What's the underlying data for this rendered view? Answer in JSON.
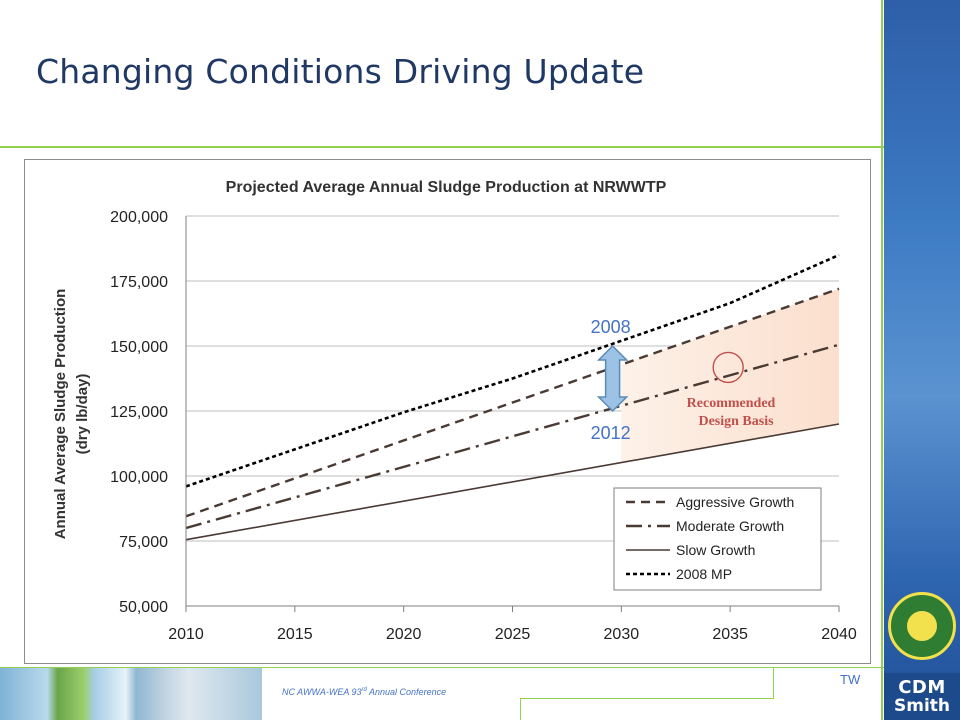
{
  "slide": {
    "title": "Changing Conditions Driving Update",
    "conference": "NC AWWA-WEA 93rd Annual Conference",
    "initials": "TW",
    "logo_line1": "CDM",
    "logo_line2": "Smith"
  },
  "colors": {
    "title": "#1f3864",
    "accent_rule": "#92d050",
    "band": "#2e5fa8",
    "shade": "#fbe4d5",
    "series_dark": "#4a3a34",
    "series_black": "#000000",
    "arrow": "#9cc2e5",
    "arrow_stroke": "#5a8bb5",
    "annotation": "#c0504d",
    "year_label": "#4472c4"
  },
  "chart_data": {
    "type": "line",
    "title": "Projected Average Annual Sludge Production at NRWWTP",
    "ylabel_line1": "Annual Average Sludge Production",
    "ylabel_line2": "(dry lb/day)",
    "xlim": [
      2010,
      2040
    ],
    "ylim": [
      50000,
      200000
    ],
    "x_ticks": [
      "2010",
      "2015",
      "2020",
      "2025",
      "2030",
      "2035",
      "2040"
    ],
    "y_ticks": [
      "50,000",
      "75,000",
      "100,000",
      "125,000",
      "150,000",
      "175,000",
      "200,000"
    ],
    "grid": "horizontal",
    "legend_position": "bottom-right",
    "x": [
      2010,
      2040
    ],
    "series": [
      {
        "name": "Aggressive Growth",
        "values": [
          84500,
          172000
        ],
        "style": "dashed"
      },
      {
        "name": "Moderate Growth",
        "values": [
          80000,
          150500
        ],
        "style": "dash-dot"
      },
      {
        "name": "Slow Growth",
        "values": [
          75500,
          120000
        ],
        "style": "solid"
      },
      {
        "name": "2008 MP",
        "x": [
          2010,
          2020,
          2025,
          2030,
          2035,
          2040
        ],
        "values": [
          96000,
          124500,
          137500,
          152000,
          166500,
          185000
        ],
        "style": "dotted"
      }
    ],
    "shaded_range": {
      "between": [
        "Slow Growth",
        "Aggressive Growth"
      ],
      "from_x": 2030
    },
    "annotations": {
      "label_2008": "2008",
      "label_2012": "2012",
      "arrow_x": 2029.6,
      "arrow_top": 150000,
      "arrow_bottom": 125000,
      "design_basis_line1": "Recommended",
      "design_basis_line2": "Design Basis",
      "circle_x": 2035,
      "circle_y": 141000
    }
  }
}
